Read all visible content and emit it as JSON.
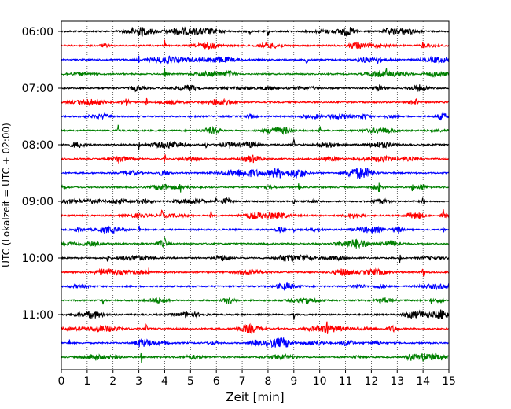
{
  "chart_data": {
    "type": "line",
    "title": "",
    "xlabel": "Zeit  [min]",
    "ylabel": "UTC (Lokalzeit = UTC + 02:00)",
    "xlim": [
      0,
      15
    ],
    "x_ticks": [
      "0",
      "1",
      "2",
      "3",
      "4",
      "5",
      "6",
      "7",
      "8",
      "9",
      "10",
      "11",
      "12",
      "13",
      "14",
      "15"
    ],
    "y_ticks": [
      "06:00",
      "07:00",
      "08:00",
      "09:00",
      "10:00",
      "11:00"
    ],
    "grid": "vertical dotted lines at each minute",
    "colors": [
      "#000000",
      "#ff0000",
      "#0000ff",
      "#008000"
    ],
    "trace_interval_minutes": 15,
    "series": [
      {
        "start": "06:00",
        "color": "#000000",
        "spikes_min": [
          7.3,
          8.0
        ]
      },
      {
        "start": "06:15",
        "color": "#ff0000",
        "spikes_min": [
          4.0,
          14.0
        ]
      },
      {
        "start": "06:30",
        "color": "#0000ff",
        "spikes_min": [
          3.0,
          9.5
        ]
      },
      {
        "start": "06:45",
        "color": "#008000",
        "spikes_min": [
          4.0,
          12.6
        ]
      },
      {
        "start": "07:00",
        "color": "#000000",
        "spikes_min": []
      },
      {
        "start": "07:15",
        "color": "#ff0000",
        "spikes_min": [
          3.3,
          13.7
        ]
      },
      {
        "start": "07:30",
        "color": "#0000ff",
        "spikes_min": []
      },
      {
        "start": "07:45",
        "color": "#008000",
        "spikes_min": [
          2.2,
          10.0
        ]
      },
      {
        "start": "08:00",
        "color": "#000000",
        "spikes_min": [
          3.0,
          5.6,
          9.0
        ]
      },
      {
        "start": "08:15",
        "color": "#ff0000",
        "spikes_min": [
          4.0,
          11.3
        ]
      },
      {
        "start": "08:30",
        "color": "#0000ff",
        "spikes_min": [
          8.5
        ]
      },
      {
        "start": "08:45",
        "color": "#008000",
        "spikes_min": [
          4.6,
          9.2,
          12.3,
          13.6
        ]
      },
      {
        "start": "09:00",
        "color": "#000000",
        "spikes_min": [
          1.0,
          6.0,
          9.0,
          14.0
        ]
      },
      {
        "start": "09:15",
        "color": "#ff0000",
        "spikes_min": [
          3.9,
          5.8,
          14.8
        ]
      },
      {
        "start": "09:30",
        "color": "#0000ff",
        "spikes_min": [
          3.0,
          9.0,
          14.8
        ]
      },
      {
        "start": "09:45",
        "color": "#008000",
        "spikes_min": [
          4.0
        ]
      },
      {
        "start": "10:00",
        "color": "#000000",
        "spikes_min": [
          1.8,
          13.1
        ]
      },
      {
        "start": "10:15",
        "color": "#ff0000",
        "spikes_min": [
          3.4,
          14.0
        ]
      },
      {
        "start": "10:30",
        "color": "#0000ff",
        "spikes_min": []
      },
      {
        "start": "10:45",
        "color": "#008000",
        "spikes_min": [
          1.6,
          9.5,
          14.3
        ]
      },
      {
        "start": "11:00",
        "color": "#000000",
        "spikes_min": [
          9.0
        ]
      },
      {
        "start": "11:15",
        "color": "#ff0000",
        "spikes_min": [
          3.3,
          10.3
        ]
      },
      {
        "start": "11:30",
        "color": "#0000ff",
        "spikes_min": [
          0.3,
          8.8
        ]
      },
      {
        "start": "11:45",
        "color": "#008000",
        "spikes_min": [
          3.1,
          14.0
        ]
      }
    ]
  }
}
